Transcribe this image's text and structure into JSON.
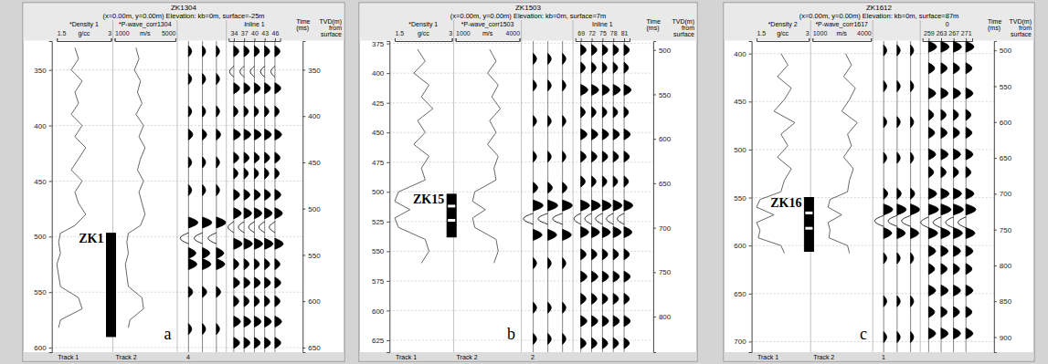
{
  "chart_data": [
    {
      "type": "well_tie",
      "title": "ZK1304",
      "subtitle": "(x=0.00m, y=0.00m) Elevation: kb=0m, surface=-25m",
      "panel_label": "a",
      "depth_label": "TVD(m) from surface",
      "time_label": "Time (ms)",
      "grid": true,
      "ylim": [
        324,
        604
      ],
      "yticks": [
        350,
        400,
        450,
        500,
        550,
        600
      ],
      "y2lim": [
        319,
        655
      ],
      "y2ticks": [
        350,
        400,
        450,
        500,
        550,
        600,
        650
      ],
      "depth": [
        330,
        340,
        350,
        360,
        370,
        380,
        390,
        400,
        410,
        420,
        430,
        440,
        450,
        460,
        470,
        480,
        490,
        497,
        505,
        515,
        525,
        535,
        545,
        555,
        565,
        575,
        582
      ],
      "tracks": [
        {
          "name": "*Density 1",
          "unit": "g/cc",
          "xlim": [
            1.5,
            3
          ],
          "xticks": [
            1.5,
            3
          ],
          "footer": "Track 1",
          "values": [
            2.0,
            2.1,
            1.9,
            2.2,
            2.0,
            2.1,
            1.9,
            2.2,
            2.0,
            2.3,
            2.1,
            1.9,
            2.2,
            2.0,
            2.1,
            2.3,
            2.0,
            1.6,
            1.55,
            1.6,
            1.5,
            1.55,
            1.6,
            2.1,
            2.2,
            1.6,
            1.55
          ]
        },
        {
          "name": "*P-wave_corr1304",
          "unit": "m/s",
          "xlim": [
            1000,
            5000
          ],
          "xticks": [
            1000,
            5000
          ],
          "footer": "Track 2",
          "values": [
            2400,
            2600,
            2300,
            2700,
            2500,
            2800,
            2400,
            2900,
            2600,
            3000,
            2700,
            2500,
            2900,
            2600,
            2800,
            3000,
            2700,
            1900,
            1800,
            1900,
            1700,
            1800,
            1900,
            2800,
            2900,
            2000,
            1900
          ]
        }
      ],
      "well_column": {
        "label": "ZK1",
        "top": 497,
        "bottom": 590
      },
      "synthetic": {
        "events": [
          [
            330,
            0.3
          ],
          [
            360,
            0.3
          ],
          [
            395,
            0.3
          ],
          [
            420,
            0.4
          ],
          [
            450,
            0.3
          ],
          [
            480,
            0.3
          ],
          [
            515,
            0.9
          ],
          [
            532,
            -0.8
          ],
          [
            548,
            0.7
          ],
          [
            560,
            0.8
          ],
          [
            590,
            0.4
          ],
          [
            630,
            0.3
          ]
        ]
      },
      "seismic": {
        "title": "Inline 1",
        "xlim": [
          32.5,
          47.5
        ],
        "xticks": [
          34,
          37,
          40,
          43,
          46
        ],
        "events": [
          [
            330,
            0.6
          ],
          [
            352,
            -0.5
          ],
          [
            370,
            0.7
          ],
          [
            395,
            0.5
          ],
          [
            420,
            0.8
          ],
          [
            445,
            0.6
          ],
          [
            462,
            0.5
          ],
          [
            485,
            0.7
          ],
          [
            505,
            0.9
          ],
          [
            520,
            -0.7
          ],
          [
            538,
            1.0
          ],
          [
            560,
            0.6
          ],
          [
            580,
            0.7
          ],
          [
            600,
            0.6
          ],
          [
            622,
            0.8
          ],
          [
            645,
            0.7
          ]
        ]
      },
      "footer": "4"
    },
    {
      "type": "well_tie",
      "title": "ZK1503",
      "subtitle": "(x=0.00m, y=0.00m) Elevation: kb=0m, surface=7m",
      "panel_label": "b",
      "depth_label": "TVD(m) from surface",
      "time_label": "Time (ms)",
      "grid": true,
      "ylim": [
        373,
        635
      ],
      "yticks": [
        375,
        400,
        425,
        450,
        475,
        500,
        525,
        550,
        575,
        600,
        625
      ],
      "y2lim": [
        490,
        840
      ],
      "y2ticks": [
        500,
        550,
        600,
        650,
        700,
        750,
        800
      ],
      "depth": [
        380,
        390,
        400,
        410,
        420,
        430,
        440,
        450,
        460,
        470,
        480,
        490,
        500,
        508,
        515,
        522,
        530,
        540,
        550,
        560
      ],
      "tracks": [
        {
          "name": "*Density 1",
          "unit": "g/cc",
          "xlim": [
            1.5,
            3
          ],
          "xticks": [
            1.5,
            3
          ],
          "footer": "Track 1",
          "values": [
            2.1,
            2.3,
            2.0,
            2.4,
            2.2,
            2.5,
            2.1,
            2.3,
            2.0,
            2.4,
            2.2,
            2.3,
            1.6,
            1.5,
            1.9,
            1.5,
            1.6,
            2.3,
            2.4,
            2.2
          ]
        },
        {
          "name": "*P-wave_corr1503",
          "unit": "m/s",
          "xlim": [
            1000,
            4000
          ],
          "xticks": [
            1000,
            4000
          ],
          "footer": "Track 2",
          "values": [
            2600,
            2900,
            2500,
            3000,
            2700,
            3100,
            2600,
            2900,
            2500,
            3000,
            2800,
            2900,
            1900,
            1800,
            2400,
            1800,
            1900,
            2900,
            3000,
            2800
          ]
        }
      ],
      "well_column": {
        "label": "ZK15",
        "top": 502,
        "bottom": 538,
        "partings": [
          512,
          524
        ]
      },
      "synthetic": {
        "events": [
          [
            510,
            0.3
          ],
          [
            540,
            0.3
          ],
          [
            580,
            0.3
          ],
          [
            620,
            0.3
          ],
          [
            655,
            0.4
          ],
          [
            675,
            0.9
          ],
          [
            690,
            -0.9
          ],
          [
            708,
            0.8
          ],
          [
            740,
            0.3
          ],
          [
            790,
            0.3
          ],
          [
            825,
            0.3
          ]
        ]
      },
      "seismic": {
        "title": "Inline 1",
        "xlim": [
          67.5,
          82.5
        ],
        "xticks": [
          69,
          72,
          75,
          78,
          81
        ],
        "events": [
          [
            500,
            0.6
          ],
          [
            520,
            0.5
          ],
          [
            545,
            0.8
          ],
          [
            570,
            0.5
          ],
          [
            595,
            0.7
          ],
          [
            620,
            0.6
          ],
          [
            648,
            0.5
          ],
          [
            675,
            1.0
          ],
          [
            690,
            -0.8
          ],
          [
            705,
            0.9
          ],
          [
            730,
            0.6
          ],
          [
            755,
            0.7
          ],
          [
            780,
            0.6
          ],
          [
            805,
            0.7
          ],
          [
            830,
            0.6
          ]
        ]
      },
      "footer": "2"
    },
    {
      "type": "well_tie",
      "title": "ZK1612",
      "subtitle": "(x=0.00m, y=0.00m) Elevation: kb=0m, surface=87m",
      "panel_label": "c",
      "depth_label": "TVD(m) from surface",
      "time_label": "Time (ms)",
      "grid": true,
      "ylim": [
        387,
        711
      ],
      "yticks": [
        400,
        450,
        500,
        550,
        600,
        650,
        700
      ],
      "y2lim": [
        487,
        921
      ],
      "y2ticks": [
        500,
        550,
        600,
        650,
        700,
        750,
        800,
        850,
        900
      ],
      "depth": [
        400,
        412,
        424,
        436,
        448,
        460,
        472,
        484,
        496,
        508,
        520,
        532,
        544,
        552,
        560,
        568,
        576,
        584,
        592,
        600,
        608
      ],
      "tracks": [
        {
          "name": "*Density 2",
          "unit": "g/cc",
          "xlim": [
            1.5,
            3
          ],
          "xticks": [
            1.5,
            3
          ],
          "footer": "Track 1",
          "values": [
            2.2,
            2.4,
            2.1,
            2.5,
            2.3,
            2.0,
            2.6,
            2.2,
            2.4,
            2.1,
            2.5,
            2.3,
            2.2,
            1.6,
            1.5,
            2.0,
            1.5,
            1.6,
            1.55,
            2.2,
            2.3
          ]
        },
        {
          "name": "*P-wave_corr1617",
          "unit": "m/s",
          "xlim": [
            1000,
            4000
          ],
          "xticks": [
            1000,
            4000
          ],
          "footer": "Track 2",
          "values": [
            2700,
            3000,
            2600,
            3200,
            2900,
            2500,
            3300,
            2800,
            3000,
            2600,
            3100,
            2900,
            2800,
            1900,
            1800,
            2500,
            1800,
            1900,
            1850,
            2800,
            2900
          ]
        }
      ],
      "well_column": {
        "label": "ZK16",
        "top": 550,
        "bottom": 606,
        "partings": [
          566,
          582
        ]
      },
      "synthetic": {
        "events": [
          [
            500,
            0.3
          ],
          [
            550,
            0.3
          ],
          [
            600,
            0.3
          ],
          [
            650,
            0.3
          ],
          [
            700,
            0.4
          ],
          [
            722,
            0.9
          ],
          [
            738,
            -0.9
          ],
          [
            755,
            0.8
          ],
          [
            790,
            0.3
          ],
          [
            850,
            0.3
          ],
          [
            900,
            0.3
          ]
        ]
      },
      "seismic": {
        "title": "0",
        "xlim": [
          257,
          273
        ],
        "xticks": [
          259,
          263,
          267,
          271
        ],
        "events": [
          [
            495,
            0.8
          ],
          [
            525,
            0.6
          ],
          [
            560,
            0.7
          ],
          [
            590,
            0.5
          ],
          [
            615,
            0.6
          ],
          [
            645,
            0.7
          ],
          [
            670,
            0.5
          ],
          [
            700,
            0.8
          ],
          [
            722,
            1.0
          ],
          [
            740,
            -0.8
          ],
          [
            755,
            0.9
          ],
          [
            780,
            0.7
          ],
          [
            805,
            0.6
          ],
          [
            835,
            0.7
          ],
          [
            865,
            0.6
          ],
          [
            895,
            0.7
          ]
        ]
      },
      "footer": "1"
    }
  ]
}
